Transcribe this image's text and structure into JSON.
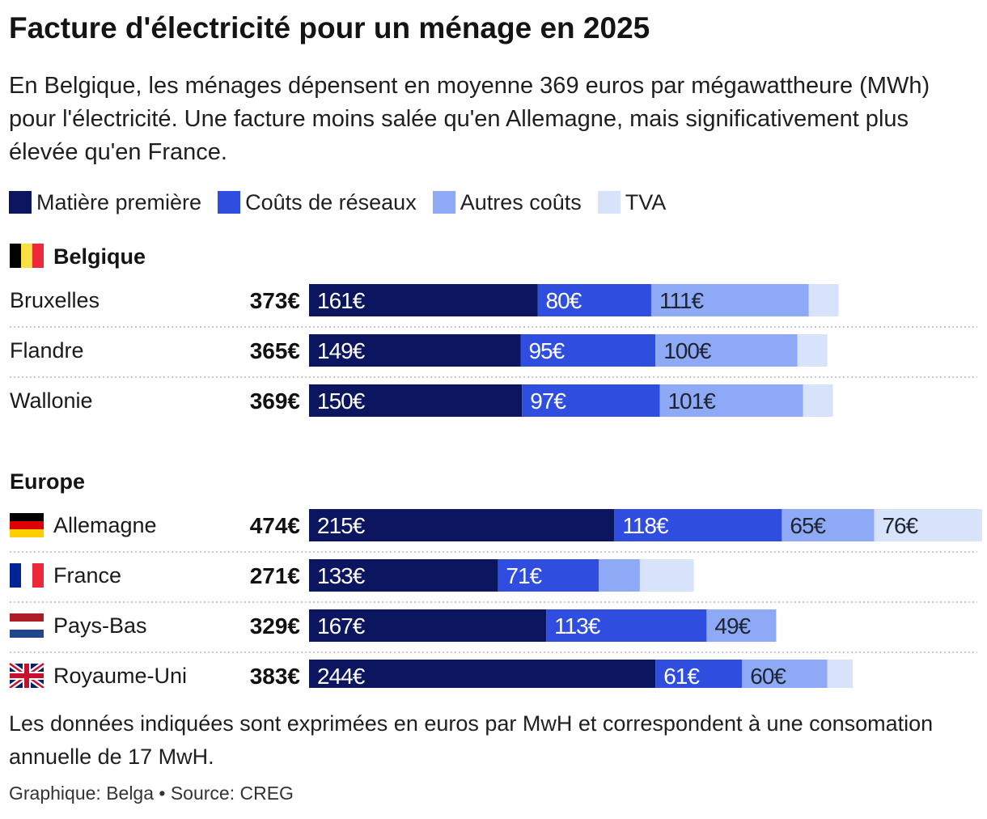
{
  "title": "Facture d'électricité pour un ménage en 2025",
  "subtitle": "En Belgique, les ménages dépensent en moyenne 369 euros par mégawattheure (MWh) pour l'électricité. Une facture moins salée qu'en Allemagne, mais significativement plus élevée qu'en France.",
  "footnote": "Les données indiquées sont exprimées en euros par MwH et correspondent à une consomation annuelle de 17 MwH.",
  "source": "Graphique: Belga • Source: CREG",
  "colors": {
    "matiere": "#0b1560",
    "reseaux": "#2f4ee0",
    "autres": "#8eaaf6",
    "tva": "#d7e2fb",
    "divider": "#c8c8c8"
  },
  "chart_data": {
    "type": "bar",
    "orientation": "horizontal",
    "stacked": true,
    "unit": "€",
    "legend_position": "top",
    "series": [
      {
        "name": "Matière première",
        "color_key": "matiere"
      },
      {
        "name": "Coûts de réseaux",
        "color_key": "reseaux"
      },
      {
        "name": "Autres coûts",
        "color_key": "autres"
      },
      {
        "name": "TVA",
        "color_key": "tva"
      }
    ],
    "groups": [
      {
        "label": "Belgique",
        "flag": "be",
        "rows": [
          {
            "label": "Bruxelles",
            "flag": "",
            "total": 373,
            "values": [
              161,
              80,
              111,
              21
            ],
            "labels": [
              "161€",
              "80€",
              "111€",
              ""
            ]
          },
          {
            "label": "Flandre",
            "flag": "",
            "total": 365,
            "values": [
              149,
              95,
              100,
              21
            ],
            "labels": [
              "149€",
              "95€",
              "100€",
              ""
            ]
          },
          {
            "label": "Wallonie",
            "flag": "",
            "total": 369,
            "values": [
              150,
              97,
              101,
              21
            ],
            "labels": [
              "150€",
              "97€",
              "101€",
              ""
            ]
          }
        ]
      },
      {
        "label": "Europe",
        "flag": "",
        "rows": [
          {
            "label": "Allemagne",
            "flag": "de",
            "total": 474,
            "values": [
              215,
              118,
              65,
              76
            ],
            "labels": [
              "215€",
              "118€",
              "65€",
              "76€"
            ]
          },
          {
            "label": "France",
            "flag": "fr",
            "total": 271,
            "values": [
              133,
              71,
              29,
              38
            ],
            "labels": [
              "133€",
              "71€",
              "",
              ""
            ]
          },
          {
            "label": "Pays-Bas",
            "flag": "nl",
            "total": 329,
            "values": [
              167,
              113,
              49,
              0
            ],
            "labels": [
              "167€",
              "113€",
              "49€",
              ""
            ]
          },
          {
            "label": "Royaume-Uni",
            "flag": "gb",
            "total": 383,
            "values": [
              244,
              61,
              60,
              18
            ],
            "labels": [
              "244€",
              "61€",
              "60€",
              ""
            ]
          }
        ]
      }
    ]
  }
}
